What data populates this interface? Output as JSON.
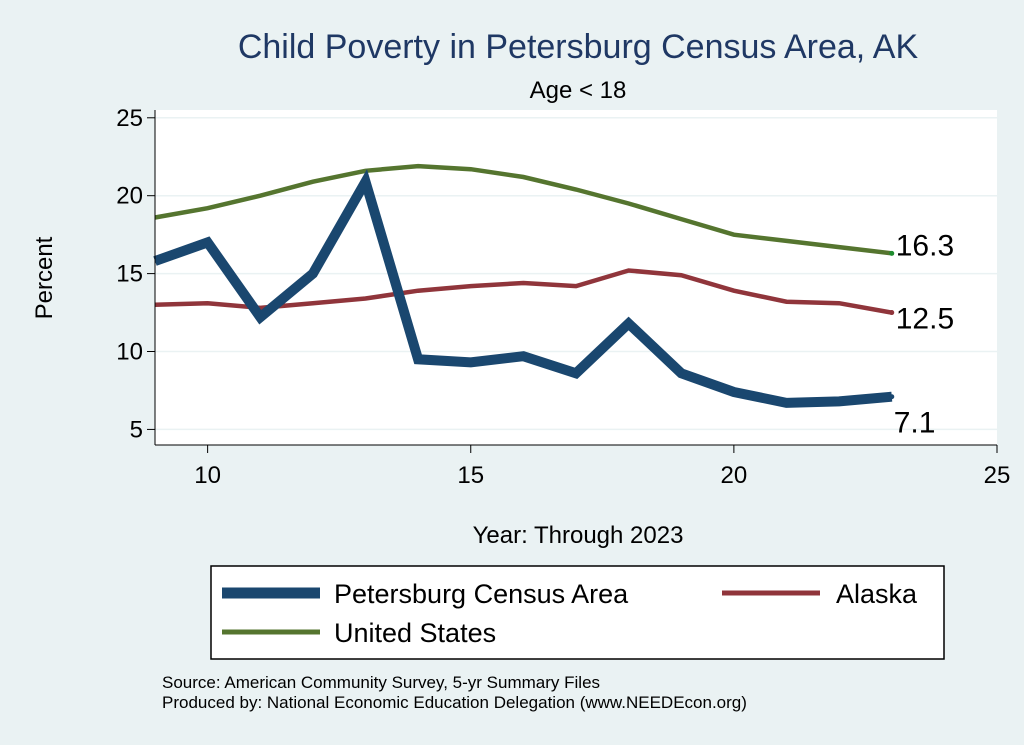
{
  "chart_data": {
    "type": "line",
    "title": "Child Poverty in Petersburg Census Area, AK",
    "subtitle": "Age < 18",
    "xlabel": "Year: Through 2023",
    "ylabel": "Percent",
    "xlim": [
      9,
      25
    ],
    "ylim": [
      4,
      25.5
    ],
    "xticks": [
      10,
      15,
      20,
      25
    ],
    "yticks": [
      5,
      10,
      15,
      20,
      25
    ],
    "series": [
      {
        "name": "Petersburg Census Area",
        "color": "#1a476f",
        "x": [
          9,
          10,
          11,
          12,
          13,
          14,
          15,
          16,
          17,
          18,
          19,
          20,
          21,
          22,
          23
        ],
        "values": [
          15.8,
          17.0,
          12.2,
          15.0,
          20.9,
          9.5,
          9.3,
          9.7,
          8.6,
          11.8,
          8.6,
          7.4,
          6.7,
          6.8,
          7.1
        ],
        "end_label": "7.1"
      },
      {
        "name": "Alaska",
        "color": "#90353b",
        "x": [
          9,
          10,
          11,
          12,
          13,
          14,
          15,
          16,
          17,
          18,
          19,
          20,
          21,
          22,
          23
        ],
        "values": [
          13.0,
          13.1,
          12.8,
          13.1,
          13.4,
          13.9,
          14.2,
          14.4,
          14.2,
          15.2,
          14.9,
          13.9,
          13.2,
          13.1,
          12.5
        ],
        "end_label": "12.5"
      },
      {
        "name": "United States",
        "color": "#55752f",
        "x": [
          9,
          10,
          11,
          12,
          13,
          14,
          15,
          16,
          17,
          18,
          19,
          20,
          21,
          22,
          23
        ],
        "values": [
          18.6,
          19.2,
          20.0,
          20.9,
          21.6,
          21.9,
          21.7,
          21.2,
          20.4,
          19.5,
          18.5,
          17.5,
          17.1,
          16.7,
          16.3
        ],
        "end_label": "16.3"
      }
    ],
    "legend": {
      "placement": "bottom",
      "items": [
        "Petersburg Census Area",
        "Alaska",
        "United States"
      ]
    },
    "source_lines": [
      "Source: American Community Survey, 5-yr Summary Files",
      "Produced by: National Economic Education Delegation (www.NEEDEcon.org)"
    ]
  }
}
